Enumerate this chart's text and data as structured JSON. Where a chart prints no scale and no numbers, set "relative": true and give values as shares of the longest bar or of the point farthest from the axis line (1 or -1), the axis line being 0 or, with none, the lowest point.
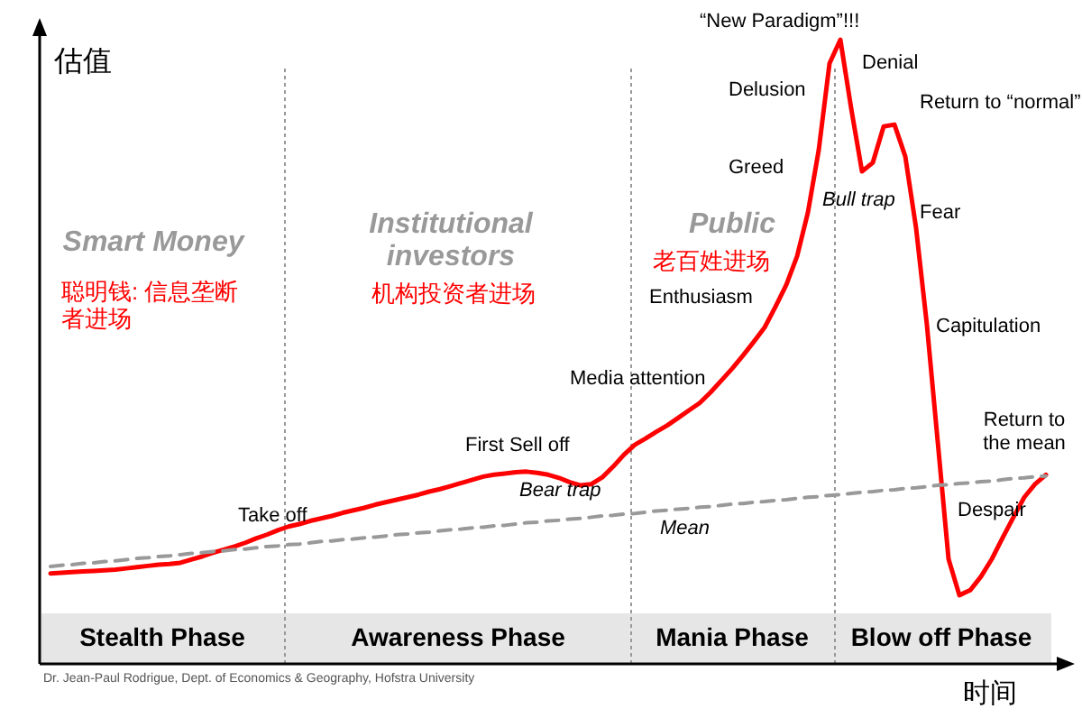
{
  "chart_data": {
    "type": "line",
    "relative": true,
    "xlabel": "时间",
    "ylabel": "估值",
    "categories": [
      null,
      null,
      null,
      null,
      null,
      null,
      null,
      null,
      null,
      null,
      null,
      null,
      null,
      null,
      null,
      null,
      null,
      null,
      null,
      null,
      null,
      null,
      null,
      null,
      null,
      null,
      null,
      null,
      null,
      null,
      null,
      null,
      null,
      null,
      null,
      null,
      null,
      null,
      null,
      null,
      null,
      null,
      null,
      null,
      null,
      null,
      null,
      null,
      null,
      null,
      null,
      null,
      null,
      null,
      null,
      null,
      null,
      null,
      null,
      null,
      null,
      null,
      null,
      null,
      null,
      null,
      null,
      null,
      null,
      null,
      null,
      null,
      null,
      null,
      null,
      null,
      null,
      null,
      null,
      null,
      null,
      null,
      null,
      null,
      null,
      null,
      null,
      null,
      null,
      null,
      null,
      null,
      null
    ],
    "series": [
      {
        "color": "#ff0000",
        "values": [
          0.145,
          0.146,
          0.147,
          0.148,
          0.149,
          0.15,
          0.151,
          0.153,
          0.155,
          0.157,
          0.159,
          0.16,
          0.162,
          0.167,
          0.172,
          0.178,
          0.183,
          0.188,
          0.194,
          0.201,
          0.207,
          0.214,
          0.22,
          0.224,
          0.229,
          0.233,
          0.237,
          0.242,
          0.246,
          0.25,
          0.255,
          0.259,
          0.263,
          0.267,
          0.271,
          0.276,
          0.28,
          0.285,
          0.29,
          0.295,
          0.3,
          0.303,
          0.305,
          0.307,
          0.308,
          0.306,
          0.303,
          0.298,
          0.291,
          0.286,
          0.288,
          0.299,
          0.316,
          0.335,
          0.351,
          0.361,
          0.372,
          0.382,
          0.394,
          0.406,
          0.418,
          0.435,
          0.454,
          0.473,
          0.494,
          0.516,
          0.539,
          0.572,
          0.607,
          0.653,
          0.723,
          0.823,
          0.962,
          1.0,
          0.89,
          0.789,
          0.803,
          0.861,
          0.864,
          0.813,
          0.698,
          0.543,
          0.356,
          0.168,
          0.11,
          0.118,
          0.14,
          0.168,
          0.202,
          0.235,
          0.267,
          0.288,
          0.303
        ]
      },
      {
        "name": "Mean",
        "color": "#999999",
        "line_style": "dashed",
        "values": [
          0.156,
          0.158,
          0.159,
          0.161,
          0.162,
          0.164,
          0.165,
          0.167,
          0.169,
          0.17,
          0.172,
          0.173,
          0.175,
          0.177,
          0.178,
          0.18,
          0.181,
          0.183,
          0.184,
          0.186,
          0.188,
          0.189,
          0.191,
          0.192,
          0.194,
          0.196,
          0.197,
          0.199,
          0.2,
          0.202,
          0.203,
          0.205,
          0.207,
          0.208,
          0.21,
          0.211,
          0.213,
          0.215,
          0.216,
          0.218,
          0.219,
          0.221,
          0.222,
          0.224,
          0.226,
          0.227,
          0.229,
          0.23,
          0.232,
          0.233,
          0.235,
          0.237,
          0.238,
          0.24,
          0.241,
          0.243,
          0.245,
          0.246,
          0.248,
          0.249,
          0.251,
          0.252,
          0.254,
          0.256,
          0.257,
          0.259,
          0.26,
          0.262,
          0.263,
          0.265,
          0.267,
          0.268,
          0.27,
          0.271,
          0.273,
          0.275,
          0.276,
          0.278,
          0.279,
          0.281,
          0.282,
          0.284,
          0.286,
          0.287,
          0.289,
          0.29,
          0.292,
          0.293,
          0.295,
          0.297,
          0.298,
          0.3,
          0.301
        ]
      }
    ],
    "annotations": [
      "Smart Money",
      "聪明钱: 信息垄断者进场",
      "Institutional investors",
      "机构投资者进场",
      "Public",
      "老百姓进场",
      "Take off",
      "First Sell off",
      "Bear trap",
      "Media attention",
      "Enthusiasm",
      "Greed",
      "Delusion",
      "“New Paradigm”!!!",
      "Denial",
      "Bull trap",
      "Return to “normal”",
      "Fear",
      "Capitulation",
      "Return to the mean",
      "Despair",
      "Stealth Phase",
      "Awareness Phase",
      "Mania Phase",
      "Blow off Phase",
      "Dr. Jean-Paul Rodrigue, Dept. of Economics & Geography, Hofstra University"
    ]
  }
}
